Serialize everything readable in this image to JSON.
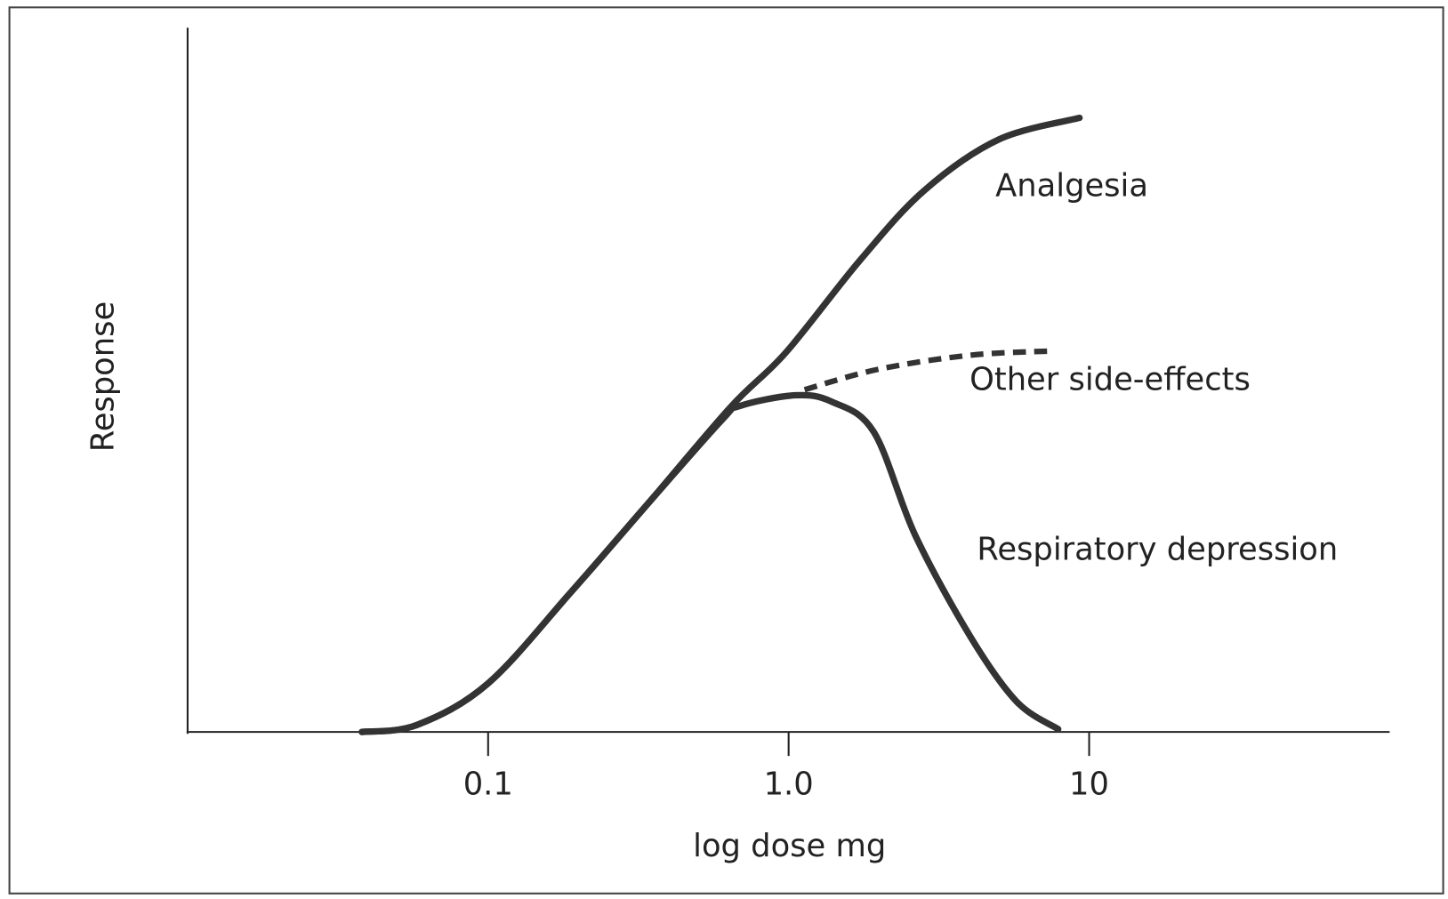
{
  "chart_data": {
    "type": "line",
    "xlabel": "log dose mg",
    "ylabel": "Response",
    "xscale": "log",
    "xlim": [
      0.01,
      100
    ],
    "xticks": [
      0.1,
      {
        "value": 1,
        "label": "1.0"
      },
      10
    ],
    "ylim": [
      0,
      100
    ],
    "color": "#333333",
    "series": [
      {
        "name": "Analgesia",
        "color": "#333333",
        "dash": false,
        "x": [
          0.038,
          0.058,
          0.1,
          0.19,
          0.34,
          0.64,
          0.98,
          1.73,
          2.83,
          4.99,
          9.29
        ],
        "values": [
          0,
          1.0,
          6.9,
          20.0,
          32.4,
          46.1,
          53.9,
          67.0,
          76.9,
          84.1,
          87.2
        ]
      },
      {
        "name": "Other side-effects",
        "color": "#333333",
        "dash": true,
        "x": [
          1.13,
          1.99,
          4.03,
          7.62
        ],
        "values": [
          48.6,
          51.5,
          53.5,
          54.1
        ]
      },
      {
        "name": "Respiratory depression",
        "color": "#333333",
        "dash": false,
        "x": [
          0.038,
          0.058,
          0.1,
          0.19,
          0.34,
          0.6,
          0.69,
          1.05,
          1.39,
          1.92,
          2.64,
          4.03,
          5.74,
          7.89
        ],
        "values": [
          0,
          1.0,
          6.9,
          20.0,
          32.4,
          44.3,
          46.3,
          47.8,
          46.9,
          42.6,
          27.9,
          13.5,
          4.3,
          0.4
        ]
      }
    ]
  }
}
